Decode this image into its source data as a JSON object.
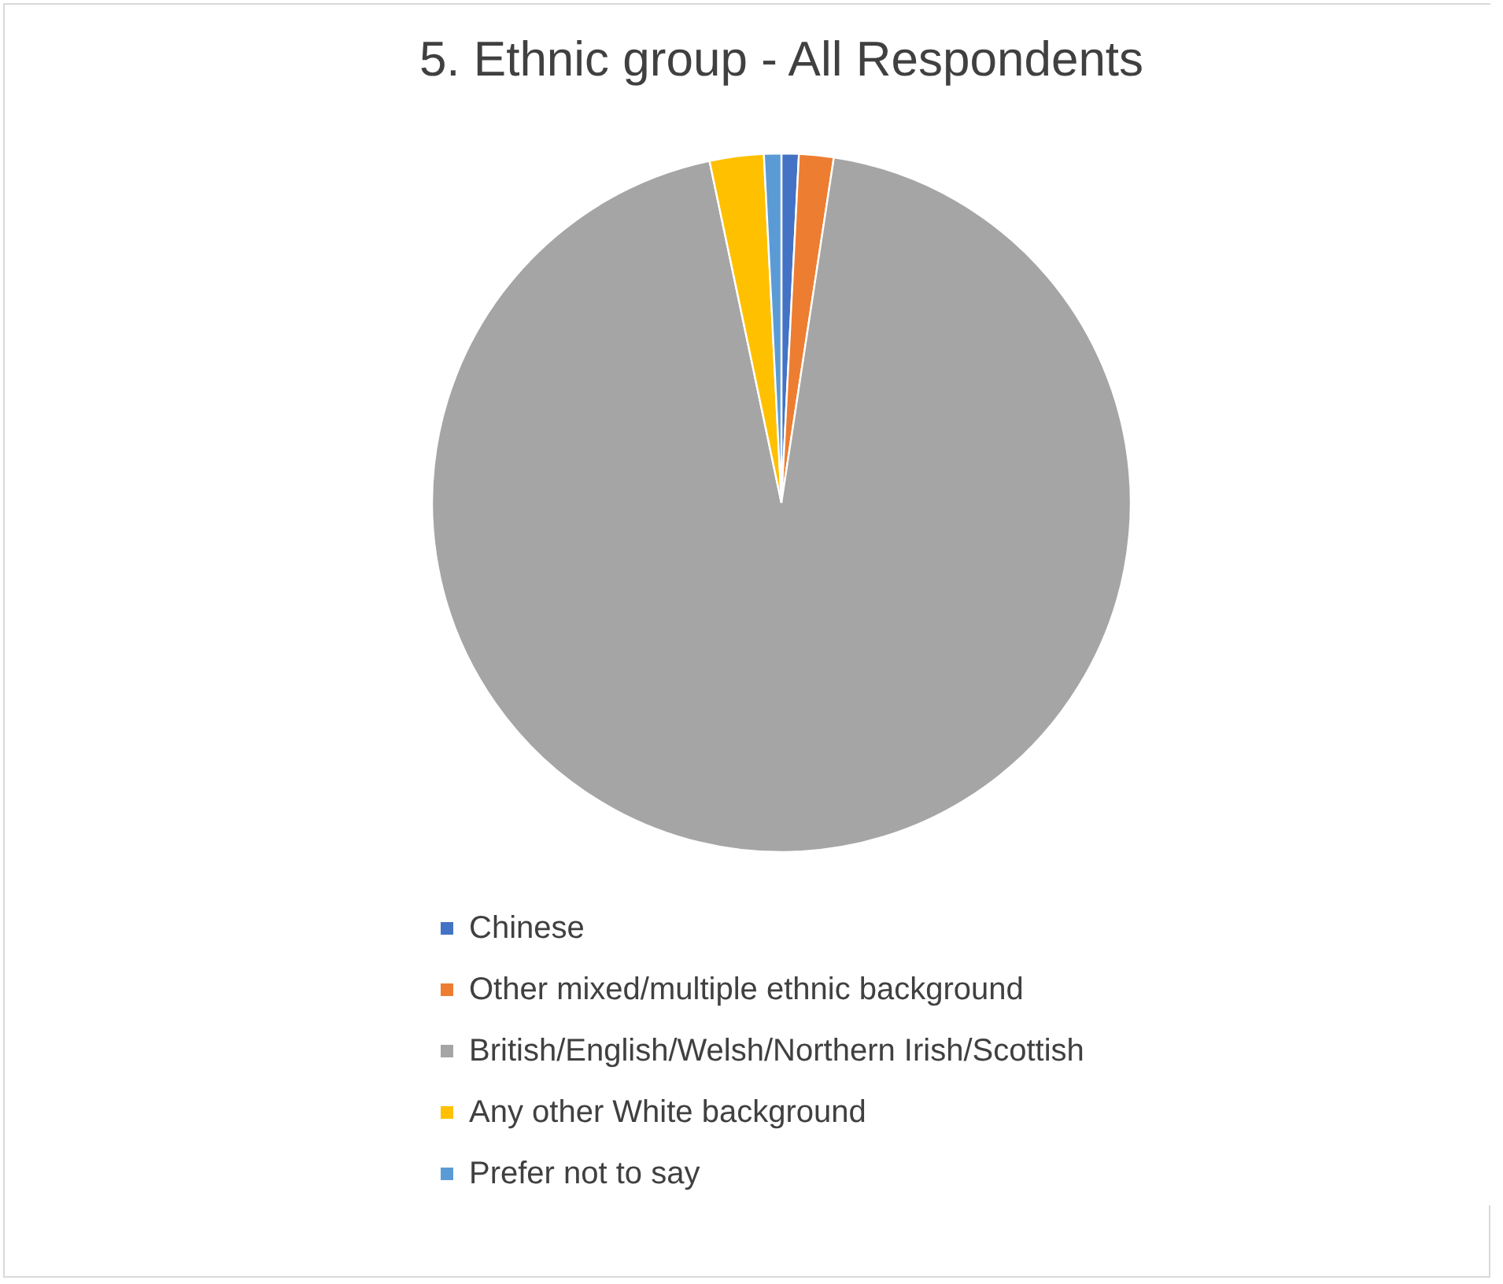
{
  "chart_data": {
    "type": "pie",
    "title": "5. Ethnic group - All Respondents",
    "categories": [
      "Chinese",
      "Other mixed/multiple ethnic background",
      "British/English/Welsh/Northern Irish/Scottish",
      "Any other White background",
      "Prefer not to say"
    ],
    "values": [
      0.8,
      1.6,
      94.3,
      2.5,
      0.8
    ],
    "colors": [
      "#4472c4",
      "#ed7d31",
      "#a5a5a5",
      "#ffc000",
      "#5b9bd5"
    ],
    "legend": "bottom"
  }
}
